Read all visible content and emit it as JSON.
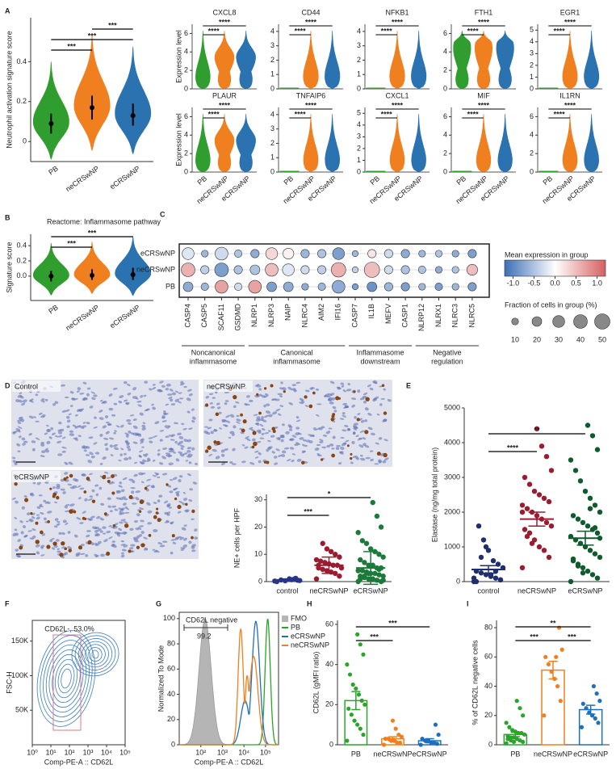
{
  "chart_data": [
    {
      "type": "violin",
      "panel": "A",
      "ylabel": "Neutrophil activation signature score",
      "categories": [
        "PB",
        "neCRSwNP",
        "eCRSwNP"
      ],
      "colors": [
        "#2f9e2f",
        "#f07f1f",
        "#2a72b0"
      ],
      "medians": [
        0.09,
        0.17,
        0.13
      ],
      "ranges": [
        [
          0.04,
          0.14
        ],
        [
          0.11,
          0.23
        ],
        [
          0.08,
          0.19
        ]
      ],
      "ylim": [
        -0.1,
        0.62
      ],
      "yticks": [
        0,
        0.2,
        0.4
      ],
      "significance": [
        "***",
        "***",
        "***"
      ]
    },
    {
      "type": "violin_grid",
      "ylabel": "Expression level",
      "categories": [
        "PB",
        "neCRSwNP",
        "eCRSwNP"
      ],
      "colors": [
        "#2f9e2f",
        "#f07f1f",
        "#2a72b0"
      ],
      "genes": [
        {
          "name": "CXCL8",
          "ylim": [
            0,
            7
          ],
          "yticks": [
            0,
            2,
            4,
            6
          ],
          "medians": [
            0.3,
            3.5,
            3.5
          ],
          "significance": [
            "****",
            "****"
          ]
        },
        {
          "name": "CD44",
          "ylim": [
            0,
            4.5
          ],
          "yticks": [
            0,
            1,
            2,
            3,
            4
          ],
          "medians": [
            0,
            0.3,
            0.3
          ],
          "significance": [
            "****",
            "****"
          ]
        },
        {
          "name": "NFKB1",
          "ylim": [
            0,
            4.5
          ],
          "yticks": [
            0,
            1,
            2,
            3,
            4
          ],
          "medians": [
            0,
            0.3,
            0.3
          ],
          "significance": [
            "****",
            "****"
          ]
        },
        {
          "name": "FTH1",
          "ylim": [
            0,
            7
          ],
          "yticks": [
            0,
            2,
            4,
            6
          ],
          "medians": [
            5,
            5,
            5
          ],
          "significance": [
            "****",
            "****"
          ]
        },
        {
          "name": "EGR1",
          "ylim": [
            0,
            5.5
          ],
          "yticks": [
            0,
            1,
            2,
            3,
            4,
            5
          ],
          "medians": [
            0,
            0.3,
            0.3
          ],
          "significance": [
            "****",
            "****"
          ]
        },
        {
          "name": "PLAUR",
          "ylim": [
            0,
            7
          ],
          "yticks": [
            0,
            2,
            4,
            6
          ],
          "medians": [
            0.3,
            3.5,
            3.5
          ],
          "significance": [
            "****",
            "****"
          ]
        },
        {
          "name": "TNFAIP6",
          "ylim": [
            0,
            4.5
          ],
          "yticks": [
            0,
            1,
            2,
            3,
            4
          ],
          "medians": [
            0,
            0.2,
            0.2
          ],
          "significance": [
            "****",
            "****"
          ]
        },
        {
          "name": "CXCL1",
          "ylim": [
            0,
            5.5
          ],
          "yticks": [
            0,
            1,
            2,
            3,
            4,
            5
          ],
          "medians": [
            0,
            0.2,
            0.2
          ],
          "significance": [
            "****",
            "****"
          ]
        },
        {
          "name": "MIF",
          "ylim": [
            0,
            7
          ],
          "yticks": [
            0,
            2,
            4,
            6
          ],
          "medians": [
            0,
            0.2,
            0.2
          ],
          "significance": [
            "****",
            "****"
          ]
        },
        {
          "name": "IL1RN",
          "ylim": [
            0,
            7
          ],
          "yticks": [
            0,
            2,
            4,
            6
          ],
          "medians": [
            0,
            0.3,
            0.3
          ],
          "significance": [
            "****",
            "****"
          ]
        }
      ]
    },
    {
      "type": "violin",
      "panel": "B",
      "title": "Reactome: Inflammasome pathway",
      "ylabel": "Signature score",
      "categories": [
        "PB",
        "neCRSwNP",
        "eCRSwNP"
      ],
      "colors": [
        "#2f9e2f",
        "#f07f1f",
        "#2a72b0"
      ],
      "medians": [
        0,
        0.01,
        0.02
      ],
      "ranges": [
        [
          -0.07,
          0.07
        ],
        [
          -0.05,
          0.09
        ],
        [
          -0.05,
          0.11
        ]
      ],
      "ylim": [
        -0.32,
        0.55
      ],
      "yticks": [
        {
          "value": 0,
          "label": "0.0"
        },
        0.2,
        0.4
      ],
      "significance": [
        "***",
        "***"
      ]
    },
    {
      "type": "dotplot",
      "panel": "C",
      "rows": [
        "eCRSwNP",
        "neCRSwNP",
        "PB"
      ],
      "genes": [
        "CASP4",
        "CASP5",
        "SCAF11",
        "GSDMD",
        "NLRP1",
        "NLRP3",
        "NAIP",
        "NLRC4",
        "AIM2",
        "IFI16",
        "CASP7",
        "IL1B",
        "MEFV",
        "CASP1",
        "NLRP12",
        "NLRX1",
        "NLRC3",
        "NLRC5"
      ],
      "groups": [
        [
          "Noncanonical",
          "inflammasome"
        ],
        [
          "Canonical",
          "inflammasome"
        ],
        [
          "Inflammasome",
          "downstream"
        ],
        [
          "Negative",
          "regulation"
        ]
      ],
      "expression": [
        [
          -0.2,
          -0.6,
          -0.3,
          -0.5,
          -0.7,
          0.3,
          0.1,
          -0.6,
          -0.5,
          -0.8,
          -0.6,
          0.2,
          -0.3,
          -0.7,
          -0.6,
          -0.5,
          -0.7,
          -0.8
        ],
        [
          0.6,
          -0.4,
          -0.8,
          -0.5,
          -0.5,
          0.5,
          -0.2,
          -0.3,
          -0.4,
          0.6,
          -0.4,
          0.5,
          -0.3,
          -0.5,
          -0.5,
          -0.7,
          -0.5,
          0.5
        ],
        [
          -0.7,
          -0.6,
          0.7,
          -0.3,
          0.7,
          -0.8,
          -0.7,
          -0.7,
          -0.6,
          -0.7,
          -0.8,
          -0.9,
          -0.6,
          -0.8,
          -0.6,
          -0.8,
          -0.6,
          -0.8
        ]
      ],
      "fraction": [
        [
          30,
          10,
          35,
          12,
          15,
          30,
          25,
          15,
          15,
          30,
          8,
          15,
          15,
          15,
          10,
          10,
          10,
          15
        ],
        [
          40,
          15,
          40,
          15,
          20,
          35,
          30,
          15,
          15,
          45,
          8,
          50,
          15,
          15,
          12,
          10,
          10,
          25
        ],
        [
          20,
          12,
          35,
          12,
          35,
          20,
          20,
          10,
          12,
          35,
          8,
          20,
          15,
          15,
          10,
          12,
          10,
          15
        ]
      ],
      "color_title": "Mean expression in group",
      "clim": [
        -1.2,
        1.2
      ],
      "cticks": [
        {
          "value": -1,
          "label": "-1.0"
        },
        {
          "value": -0.5,
          "label": "-0.5"
        },
        {
          "value": 0,
          "label": "0.0"
        },
        0.5,
        {
          "value": 1,
          "label": "1.0"
        }
      ],
      "size_title": "Fraction of cells in group (%)",
      "sizes": [
        10,
        20,
        30,
        40,
        50
      ]
    },
    {
      "type": "image",
      "panel": "D",
      "labels": [
        "Control",
        "neCRSwNP",
        "eCRSwNP"
      ]
    },
    {
      "type": "strip",
      "ylabel": "NE+ cells per HPF",
      "categories": [
        "control",
        "neCRSwNP",
        "eCRSwNP"
      ],
      "colors": [
        "#27348b",
        "#9b1b30",
        "#1a7a3a"
      ],
      "points": [
        [
          0.2,
          0.5,
          0.8,
          1,
          0.3,
          0.6,
          0,
          0.4,
          1.2,
          0.7
        ],
        [
          1,
          2,
          3,
          3.5,
          4,
          4.5,
          5,
          5,
          6,
          6,
          6.5,
          7,
          7.5,
          8,
          9,
          10,
          11,
          12,
          14,
          6
        ],
        [
          0,
          0,
          0.5,
          1,
          1,
          1.5,
          2,
          2,
          2.5,
          3,
          3,
          3.5,
          4,
          4,
          5,
          5,
          6,
          6,
          7,
          8,
          9,
          10,
          11,
          12,
          14,
          15,
          18,
          20,
          24,
          29,
          3,
          2,
          1,
          0.5,
          4.5
        ]
      ],
      "means": [
        0.57,
        6,
        5
      ],
      "errors": [
        0.4,
        3,
        6
      ],
      "ylim": [
        0,
        32
      ],
      "yticks": [
        0,
        10,
        20,
        30
      ],
      "significance": [
        "*",
        "***"
      ]
    },
    {
      "type": "strip",
      "panel": "E",
      "ylabel": "Elastase (ng/mg total protein)",
      "categories": [
        "control",
        "neCRSwNP",
        "eCRSwNP"
      ],
      "colors": [
        "#1f2f6e",
        "#9b1b30",
        "#0f5a2e"
      ],
      "points": [
        [
          0,
          50,
          100,
          150,
          200,
          250,
          300,
          400,
          500,
          600,
          900,
          1200,
          1600,
          100,
          50,
          300,
          200,
          1000,
          700,
          0
        ],
        [
          400,
          700,
          900,
          1000,
          1200,
          1400,
          1500,
          1600,
          1700,
          1800,
          1900,
          2000,
          2100,
          2200,
          2300,
          2400,
          2500,
          2600,
          2800,
          3000,
          3200,
          3600,
          3900,
          4400,
          1100,
          1300,
          2000
        ],
        [
          0,
          100,
          200,
          300,
          400,
          500,
          600,
          700,
          800,
          900,
          1000,
          1100,
          1200,
          1300,
          1400,
          1500,
          1600,
          1700,
          1800,
          1900,
          2000,
          2200,
          2400,
          2600,
          2900,
          3200,
          3500,
          3800,
          4200,
          4500,
          250,
          450,
          650,
          1250,
          1550,
          2100
        ]
      ],
      "means": [
        350,
        1800,
        1250
      ],
      "errors": [
        110,
        200,
        200
      ],
      "ylim": [
        0,
        5000
      ],
      "yticks": [
        0,
        1000,
        2000,
        3000,
        4000,
        5000
      ],
      "significance": [
        "**",
        "****"
      ]
    },
    {
      "type": "contour",
      "panel": "F",
      "ylabel": "FSC-H",
      "xlabel": "Comp-PE-A :: CD62L",
      "gate_label": "CD62L-, 53.0%",
      "log_x": true,
      "xlim": [
        1,
        100000
      ],
      "xticks": [
        {
          "value": 1,
          "label": "10⁰"
        },
        {
          "value": 10,
          "label": "10¹"
        },
        {
          "value": 100,
          "label": "10²"
        },
        {
          "value": 1000,
          "label": "10³"
        },
        {
          "value": 10000,
          "label": "10⁴"
        },
        {
          "value": 100000,
          "label": "10⁵"
        }
      ],
      "ylim": [
        0,
        180000
      ],
      "yticks": [
        {
          "value": 50000,
          "label": "50K"
        },
        {
          "value": 100000,
          "label": "100K"
        },
        {
          "value": 150000,
          "label": "150K"
        }
      ]
    },
    {
      "type": "histogram_overlay",
      "panel": "G",
      "ylabel": "Normalized To Mode",
      "xlabel": "Comp-PE-A :: CD62L",
      "gate_label": "CD62L negative",
      "gate_value": 99.2,
      "log_x": true,
      "xlim": [
        10,
        400000
      ],
      "xticks": [
        {
          "value": 100,
          "label": "10²"
        },
        {
          "value": 1000,
          "label": "10³"
        },
        {
          "value": 10000,
          "label": "10⁴"
        },
        {
          "value": 100000,
          "label": "10⁵"
        }
      ],
      "ylim": [
        0,
        105
      ],
      "yticks": [
        0,
        20,
        40,
        60,
        80,
        100
      ],
      "series": [
        {
          "name": "FMO",
          "color": "#b5b5b5"
        },
        {
          "name": "PB",
          "color": "#2aa52a"
        },
        {
          "name": "eCRSwNP",
          "color": "#1f6fc0"
        },
        {
          "name": "neCRSwNP",
          "color": "#f07f1f"
        }
      ]
    },
    {
      "type": "bar",
      "panel": "H",
      "ylabel": "CD62L (gMFI ratio)",
      "categories": [
        "PB",
        "neCRSwNP",
        "eCRSwNP"
      ],
      "colors": [
        "#2aa52a",
        "#f07f1f",
        "#1f6fc0"
      ],
      "values": [
        22,
        3,
        2
      ],
      "errors": [
        4.5,
        1,
        1
      ],
      "points": [
        [
          2,
          5,
          8,
          10,
          12,
          15,
          18,
          20,
          22,
          25,
          28,
          30,
          35,
          40,
          45,
          50,
          55
        ],
        [
          0,
          1,
          1,
          2,
          2,
          3,
          3,
          4,
          5,
          8,
          12
        ],
        [
          0,
          0.5,
          1,
          1,
          2,
          2,
          3,
          5,
          10
        ]
      ],
      "ylim": [
        0,
        62
      ],
      "yticks": [
        0,
        20,
        40,
        60
      ],
      "significance": [
        "***",
        "***"
      ]
    },
    {
      "type": "bar",
      "panel": "I",
      "ylabel": "% of CD62L negative cells",
      "categories": [
        "PB",
        "neCRSwNP",
        "eCRSwNP"
      ],
      "colors": [
        "#2aa52a",
        "#f07f1f",
        "#1f6fc0"
      ],
      "values": [
        7,
        51,
        24
      ],
      "errors": [
        1.5,
        6,
        3
      ],
      "points": [
        [
          1,
          2,
          3,
          4,
          5,
          5,
          6,
          7,
          8,
          8,
          9,
          10,
          12,
          15,
          20,
          25,
          30,
          2,
          3,
          4
        ],
        [
          20,
          30,
          40,
          45,
          50,
          55,
          60,
          65,
          80,
          60
        ],
        [
          12,
          15,
          18,
          20,
          22,
          25,
          28,
          30,
          35,
          40
        ]
      ],
      "ylim": [
        0,
        85
      ],
      "yticks": [
        0,
        20,
        40,
        60,
        80
      ],
      "significance": [
        "**",
        "***",
        "***"
      ]
    }
  ]
}
